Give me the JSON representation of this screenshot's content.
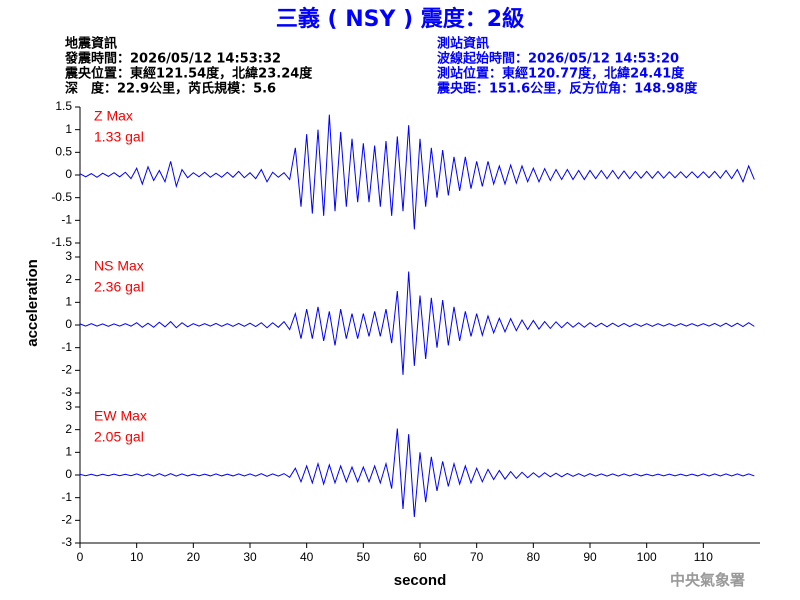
{
  "header": {
    "title": "三義 ( NSY ) 震度：2級",
    "left": [
      "地震資訊",
      "發震時間：2026/05/12 14:53:32",
      "震央位置：東經121.54度，北緯23.24度",
      "深　度：22.9公里，芮氏規模：5.6"
    ],
    "right": [
      "測站資訊",
      "波線起始時間：2026/05/12 14:53:20",
      "測站位置：東經120.77度，北緯24.41度",
      "震央距：151.6公里，反方位角：148.98度"
    ],
    "footer": "中央氣象署"
  },
  "x_axis": {
    "label": "second",
    "ylabel": "acceleration",
    "xlim": [
      0,
      120
    ],
    "xticks": [
      0,
      10,
      20,
      30,
      40,
      50,
      60,
      70,
      80,
      90,
      100,
      110
    ],
    "x": [
      0,
      1,
      2,
      3,
      4,
      5,
      6,
      7,
      8,
      9,
      10,
      11,
      12,
      13,
      14,
      15,
      16,
      17,
      18,
      19,
      20,
      21,
      22,
      23,
      24,
      25,
      26,
      27,
      28,
      29,
      30,
      31,
      32,
      33,
      34,
      35,
      36,
      37,
      38,
      39,
      40,
      41,
      42,
      43,
      44,
      45,
      46,
      47,
      48,
      49,
      50,
      51,
      52,
      53,
      54,
      55,
      56,
      57,
      58,
      59,
      60,
      61,
      62,
      63,
      64,
      65,
      66,
      67,
      68,
      69,
      70,
      71,
      72,
      73,
      74,
      75,
      76,
      77,
      78,
      79,
      80,
      81,
      82,
      83,
      84,
      85,
      86,
      87,
      88,
      89,
      90,
      91,
      92,
      93,
      94,
      95,
      96,
      97,
      98,
      99,
      100,
      101,
      102,
      103,
      104,
      105,
      106,
      107,
      108,
      109,
      110,
      111,
      112,
      113,
      114,
      115,
      116,
      117,
      118,
      119
    ]
  },
  "chart_data": [
    {
      "type": "line",
      "color": "#0000ff",
      "max_label": "Z Max",
      "max_value": "1.33 gal",
      "ylim": [
        -1.5,
        1.5
      ],
      "yticks": [
        -1.5,
        -1,
        -0.5,
        0,
        0.5,
        1,
        1.5
      ],
      "values": [
        0.03,
        -0.04,
        0.03,
        -0.05,
        0.04,
        -0.03,
        0.05,
        -0.04,
        0.06,
        -0.08,
        0.15,
        -0.2,
        0.18,
        -0.12,
        0.1,
        -0.15,
        0.3,
        -0.25,
        0.12,
        -0.06,
        0.05,
        -0.04,
        0.06,
        -0.05,
        0.04,
        -0.05,
        0.06,
        -0.05,
        0.08,
        -0.06,
        0.05,
        -0.08,
        0.12,
        -0.15,
        0.06,
        -0.05,
        0.05,
        -0.1,
        0.6,
        -0.7,
        0.9,
        -0.85,
        1.0,
        -0.9,
        1.33,
        -0.8,
        0.95,
        -0.7,
        0.8,
        -0.6,
        0.7,
        -0.6,
        0.65,
        -0.7,
        0.75,
        -0.9,
        0.85,
        -0.8,
        1.1,
        -1.2,
        0.8,
        -0.7,
        0.6,
        -0.5,
        0.55,
        -0.45,
        0.4,
        -0.35,
        0.4,
        -0.3,
        0.3,
        -0.25,
        0.3,
        -0.2,
        0.2,
        -0.2,
        0.22,
        -0.18,
        0.2,
        -0.15,
        0.15,
        -0.15,
        0.14,
        -0.12,
        0.12,
        -0.1,
        0.12,
        -0.1,
        0.1,
        -0.1,
        0.1,
        -0.08,
        0.1,
        -0.08,
        0.1,
        -0.08,
        0.09,
        -0.08,
        0.08,
        -0.07,
        0.08,
        -0.07,
        0.08,
        -0.07,
        0.07,
        -0.06,
        0.07,
        -0.06,
        0.07,
        -0.06,
        0.07,
        -0.06,
        0.08,
        -0.07,
        0.1,
        -0.08,
        0.12,
        -0.15,
        0.2,
        -0.1
      ]
    },
    {
      "type": "line",
      "color": "#0000ff",
      "max_label": "NS Max",
      "max_value": "2.36 gal",
      "ylim": [
        -3,
        3
      ],
      "yticks": [
        -3,
        -2,
        -1,
        0,
        1,
        2,
        3
      ],
      "values": [
        0.05,
        -0.05,
        0.06,
        -0.05,
        0.05,
        -0.06,
        0.05,
        -0.05,
        0.06,
        -0.05,
        0.1,
        -0.1,
        0.08,
        -0.1,
        0.12,
        -0.08,
        0.15,
        -0.12,
        0.1,
        -0.08,
        0.06,
        -0.05,
        0.06,
        -0.05,
        0.07,
        -0.06,
        0.06,
        -0.06,
        0.07,
        -0.06,
        0.08,
        -0.07,
        0.1,
        -0.12,
        0.1,
        -0.1,
        0.15,
        -0.2,
        0.5,
        -0.6,
        0.7,
        -0.6,
        0.8,
        -0.7,
        0.6,
        -0.9,
        0.7,
        -0.6,
        0.5,
        -0.6,
        0.5,
        -0.5,
        0.6,
        -0.5,
        0.7,
        -0.8,
        1.5,
        -2.2,
        2.36,
        -1.8,
        1.3,
        -1.5,
        1.2,
        -1.0,
        1.1,
        -0.9,
        0.8,
        -0.7,
        0.6,
        -0.5,
        0.5,
        -0.45,
        0.4,
        -0.35,
        0.3,
        -0.3,
        0.28,
        -0.25,
        0.22,
        -0.2,
        0.2,
        -0.18,
        0.15,
        -0.15,
        0.14,
        -0.12,
        0.12,
        -0.1,
        0.1,
        -0.1,
        0.1,
        -0.08,
        0.08,
        -0.08,
        0.08,
        -0.07,
        0.07,
        -0.07,
        0.06,
        -0.06,
        0.06,
        -0.06,
        0.06,
        -0.05,
        0.06,
        -0.05,
        0.06,
        -0.05,
        0.06,
        -0.05,
        0.06,
        -0.05,
        0.07,
        -0.06,
        0.08,
        -0.07,
        0.08,
        -0.07,
        0.1,
        -0.06
      ]
    },
    {
      "type": "line",
      "color": "#0000ff",
      "max_label": "EW Max",
      "max_value": "2.05 gal",
      "ylim": [
        -3,
        3
      ],
      "yticks": [
        -3,
        -2,
        -1,
        0,
        1,
        2,
        3
      ],
      "values": [
        0.03,
        -0.03,
        0.03,
        -0.04,
        0.03,
        -0.03,
        0.04,
        -0.03,
        0.03,
        -0.03,
        0.05,
        -0.04,
        0.05,
        -0.05,
        0.06,
        -0.05,
        0.06,
        -0.05,
        0.05,
        -0.04,
        0.04,
        -0.04,
        0.04,
        -0.04,
        0.05,
        -0.04,
        0.04,
        -0.04,
        0.05,
        -0.04,
        0.05,
        -0.05,
        0.06,
        -0.06,
        0.05,
        -0.05,
        0.06,
        -0.1,
        0.3,
        -0.3,
        0.4,
        -0.35,
        0.5,
        -0.4,
        0.45,
        -0.35,
        0.4,
        -0.3,
        0.35,
        -0.3,
        0.35,
        -0.3,
        0.4,
        -0.35,
        0.5,
        -0.6,
        2.05,
        -1.5,
        1.8,
        -1.85,
        1.0,
        -1.2,
        0.8,
        -0.7,
        0.6,
        -0.5,
        0.5,
        -0.4,
        0.4,
        -0.35,
        0.3,
        -0.3,
        0.25,
        -0.2,
        0.2,
        -0.18,
        0.15,
        -0.15,
        0.12,
        -0.12,
        0.1,
        -0.1,
        0.1,
        -0.08,
        0.08,
        -0.08,
        0.07,
        -0.06,
        0.06,
        -0.06,
        0.06,
        -0.05,
        0.05,
        -0.05,
        0.05,
        -0.05,
        0.05,
        -0.04,
        0.05,
        -0.04,
        0.04,
        -0.04,
        0.04,
        -0.04,
        0.04,
        -0.04,
        0.04,
        -0.04,
        0.04,
        -0.04,
        0.05,
        -0.04,
        0.05,
        -0.04,
        0.05,
        -0.04,
        0.05,
        -0.04,
        0.05,
        -0.04
      ]
    }
  ]
}
